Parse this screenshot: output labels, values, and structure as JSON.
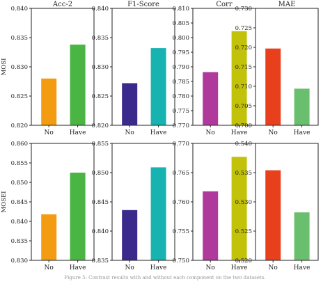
{
  "caption": "Figure 5: Contrast results with and without each component on the two datasets.",
  "chart_data": [
    {
      "type": "bar",
      "row": "MOSI",
      "title": "Acc-2",
      "categories": [
        "No",
        "Have"
      ],
      "values": [
        0.828,
        0.8338
      ],
      "colors": [
        "#f39c12",
        "#4bb543"
      ],
      "ylim": [
        0.82,
        0.84
      ],
      "yticks": [
        "0.820",
        "0.825",
        "0.830",
        "0.835",
        "0.840"
      ],
      "ylabel": "MOSI"
    },
    {
      "type": "bar",
      "row": "MOSI",
      "title": "F1-Score",
      "categories": [
        "No",
        "Have"
      ],
      "values": [
        0.8272,
        0.8332
      ],
      "colors": [
        "#3a2a8c",
        "#17b3b0"
      ],
      "ylim": [
        0.82,
        0.84
      ],
      "yticks": [
        "0.820",
        "0.825",
        "0.830",
        "0.835",
        "0.840"
      ],
      "ylabel": ""
    },
    {
      "type": "bar",
      "row": "MOSI",
      "title": "Corr",
      "categories": [
        "No",
        "Have"
      ],
      "values": [
        0.7882,
        0.8022
      ],
      "colors": [
        "#b03a9c",
        "#c2c20a"
      ],
      "ylim": [
        0.77,
        0.81
      ],
      "yticks": [
        "0.770",
        "0.775",
        "0.780",
        "0.785",
        "0.790",
        "0.795",
        "0.800",
        "0.805",
        "0.810"
      ],
      "ylabel": ""
    },
    {
      "type": "bar",
      "row": "MOSI",
      "title": "MAE",
      "categories": [
        "No",
        "Have"
      ],
      "values": [
        0.7197,
        0.7094
      ],
      "colors": [
        "#e8401c",
        "#6abf6e"
      ],
      "ylim": [
        0.7,
        0.73
      ],
      "yticks": [
        "0.700",
        "0.705",
        "0.710",
        "0.715",
        "0.720",
        "0.725",
        "0.730"
      ],
      "ylabel": ""
    },
    {
      "type": "bar",
      "row": "MOSEI",
      "title": "",
      "categories": [
        "No",
        "Have"
      ],
      "values": [
        0.8418,
        0.8525
      ],
      "colors": [
        "#f39c12",
        "#4bb543"
      ],
      "ylim": [
        0.83,
        0.86
      ],
      "yticks": [
        "0.830",
        "0.835",
        "0.840",
        "0.845",
        "0.850",
        "0.855",
        "0.860"
      ],
      "ylabel": "MOSEI"
    },
    {
      "type": "bar",
      "row": "MOSEI",
      "title": "",
      "categories": [
        "No",
        "Have"
      ],
      "values": [
        0.8436,
        0.8509
      ],
      "colors": [
        "#3a2a8c",
        "#17b3b0"
      ],
      "ylim": [
        0.835,
        0.855
      ],
      "yticks": [
        "0.835",
        "0.840",
        "0.845",
        "0.850",
        "0.855"
      ],
      "ylabel": ""
    },
    {
      "type": "bar",
      "row": "MOSEI",
      "title": "",
      "categories": [
        "No",
        "Have"
      ],
      "values": [
        0.7618,
        0.7677
      ],
      "colors": [
        "#b03a9c",
        "#c2c20a"
      ],
      "ylim": [
        0.75,
        0.77
      ],
      "yticks": [
        "0.750",
        "0.755",
        "0.760",
        "0.765",
        "0.770"
      ],
      "ylabel": ""
    },
    {
      "type": "bar",
      "row": "MOSEI",
      "title": "",
      "categories": [
        "No",
        "Have"
      ],
      "values": [
        0.5354,
        0.5282
      ],
      "colors": [
        "#e8401c",
        "#6abf6e"
      ],
      "ylim": [
        0.52,
        0.54
      ],
      "yticks": [
        "0.520",
        "0.525",
        "0.530",
        "0.535",
        "0.540"
      ],
      "ylabel": ""
    }
  ]
}
